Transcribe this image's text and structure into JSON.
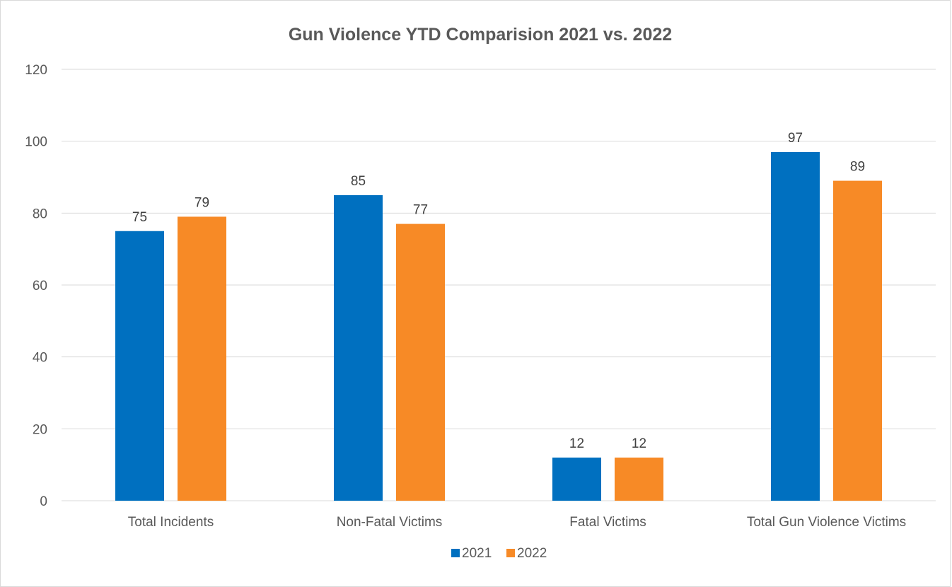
{
  "chart_data": {
    "type": "bar",
    "title": "Gun Violence YTD Comparision 2021 vs. 2022",
    "categories": [
      "Total Incidents",
      "Non-Fatal Victims",
      "Fatal Victims",
      "Total Gun Violence Victims"
    ],
    "series": [
      {
        "name": "2021",
        "values": [
          75,
          85,
          12,
          97
        ],
        "color": "#0070C0"
      },
      {
        "name": "2022",
        "values": [
          79,
          77,
          12,
          89
        ],
        "color": "#F78A26"
      }
    ],
    "xlabel": "",
    "ylabel": "",
    "ylim": [
      0,
      120
    ],
    "yticks": [
      0,
      20,
      40,
      60,
      80,
      100,
      120
    ],
    "grid": true,
    "legend": "bottom",
    "data_labels": true,
    "gridline_color": "#D9D9D9"
  }
}
